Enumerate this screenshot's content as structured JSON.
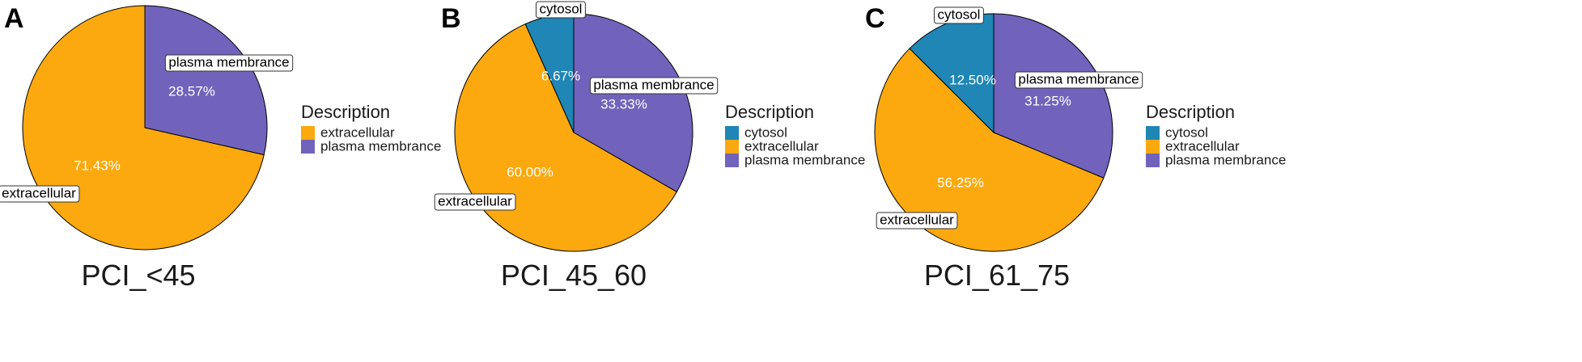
{
  "chart_data": [
    {
      "type": "pie",
      "panel": "A",
      "title": "PCI_<45",
      "legend_title": "Description",
      "slices": [
        {
          "category": "plasma membrance",
          "value": 28.57,
          "label": "28.57%",
          "color": "#7163BB"
        },
        {
          "category": "extracellular",
          "value": 71.43,
          "label": "71.43%",
          "color": "#FCA90F"
        }
      ],
      "legend": [
        {
          "category": "extracellular",
          "color": "#FCA90F"
        },
        {
          "category": "plasma membrance",
          "color": "#7163BB"
        }
      ]
    },
    {
      "type": "pie",
      "panel": "B",
      "title": "PCI_45_60",
      "legend_title": "Description",
      "slices": [
        {
          "category": "plasma membrance",
          "value": 33.33,
          "label": "33.33%",
          "color": "#7163BB"
        },
        {
          "category": "extracellular",
          "value": 60.0,
          "label": "60.00%",
          "color": "#FCA90F"
        },
        {
          "category": "cytosol",
          "value": 6.67,
          "label": "6.67%",
          "color": "#1F86B5"
        }
      ],
      "legend": [
        {
          "category": "cytosol",
          "color": "#1F86B5"
        },
        {
          "category": "extracellular",
          "color": "#FCA90F"
        },
        {
          "category": "plasma membrance",
          "color": "#7163BB"
        }
      ]
    },
    {
      "type": "pie",
      "panel": "C",
      "title": "PCI_61_75",
      "legend_title": "Description",
      "slices": [
        {
          "category": "plasma membrance",
          "value": 31.25,
          "label": "31.25%",
          "color": "#7163BB"
        },
        {
          "category": "extracellular",
          "value": 56.25,
          "label": "56.25%",
          "color": "#FCA90F"
        },
        {
          "category": "cytosol",
          "value": 12.5,
          "label": "12.50%",
          "color": "#1F86B5"
        }
      ],
      "legend": [
        {
          "category": "cytosol",
          "color": "#1F86B5"
        },
        {
          "category": "extracellular",
          "color": "#FCA90F"
        },
        {
          "category": "plasma membrance",
          "color": "#7163BB"
        }
      ]
    }
  ]
}
